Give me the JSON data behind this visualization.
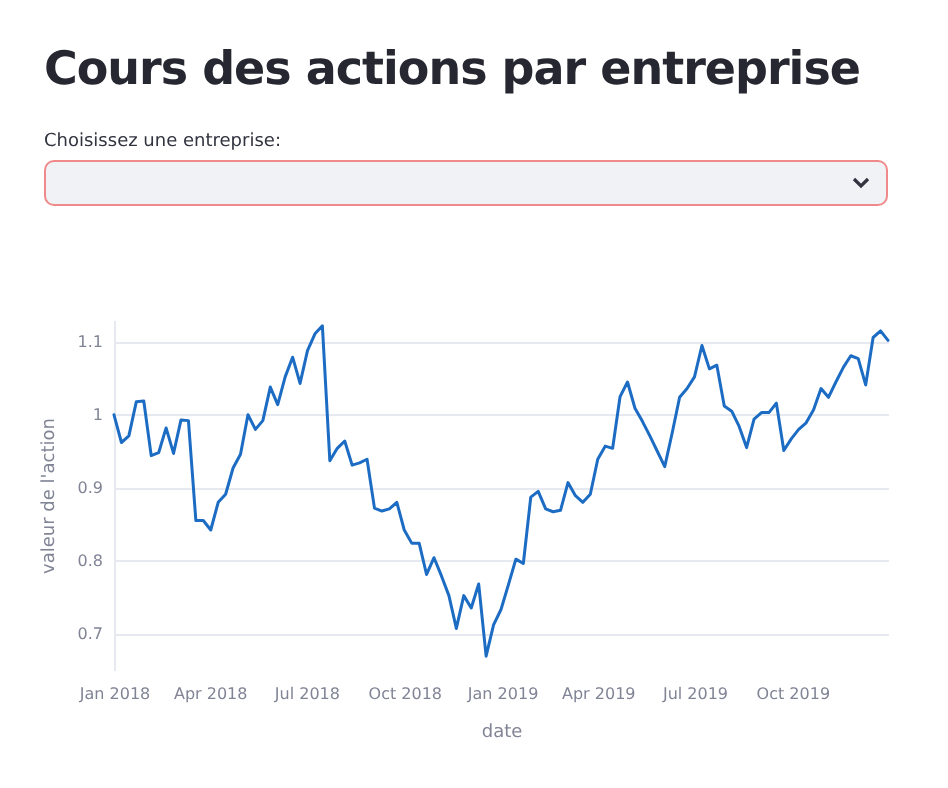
{
  "chart_data": {
    "type": "line",
    "title": "Cours des actions par entreprise",
    "annotations": [
      "Choisissez une entreprise:"
    ],
    "xlabel": "date",
    "ylabel": "valeur de l'action",
    "x": [
      "2018-01-01",
      "2018-01-08",
      "2018-01-15",
      "2018-01-22",
      "2018-01-29",
      "2018-02-05",
      "2018-02-12",
      "2018-02-19",
      "2018-02-26",
      "2018-03-05",
      "2018-03-12",
      "2018-03-19",
      "2018-03-26",
      "2018-04-02",
      "2018-04-09",
      "2018-04-16",
      "2018-04-23",
      "2018-04-30",
      "2018-05-07",
      "2018-05-14",
      "2018-05-21",
      "2018-05-28",
      "2018-06-04",
      "2018-06-11",
      "2018-06-18",
      "2018-06-25",
      "2018-07-02",
      "2018-07-09",
      "2018-07-16",
      "2018-07-23",
      "2018-07-30",
      "2018-08-06",
      "2018-08-13",
      "2018-08-20",
      "2018-08-27",
      "2018-09-03",
      "2018-09-10",
      "2018-09-17",
      "2018-09-24",
      "2018-10-01",
      "2018-10-08",
      "2018-10-15",
      "2018-10-22",
      "2018-10-29",
      "2018-11-05",
      "2018-11-12",
      "2018-11-19",
      "2018-11-26",
      "2018-12-03",
      "2018-12-10",
      "2018-12-17",
      "2018-12-24",
      "2018-12-31",
      "2019-01-07",
      "2019-01-14",
      "2019-01-21",
      "2019-01-28",
      "2019-02-04",
      "2019-02-11",
      "2019-02-18",
      "2019-02-25",
      "2019-03-04",
      "2019-03-11",
      "2019-03-18",
      "2019-03-25",
      "2019-04-01",
      "2019-04-08",
      "2019-04-15",
      "2019-04-22",
      "2019-04-29",
      "2019-05-06",
      "2019-05-13",
      "2019-05-20",
      "2019-05-27",
      "2019-06-03",
      "2019-06-10",
      "2019-06-17",
      "2019-06-24",
      "2019-07-01",
      "2019-07-08",
      "2019-07-15",
      "2019-07-22",
      "2019-07-29",
      "2019-08-05",
      "2019-08-12",
      "2019-08-19",
      "2019-08-26",
      "2019-09-02",
      "2019-09-09",
      "2019-09-16",
      "2019-09-23",
      "2019-09-30",
      "2019-10-07",
      "2019-10-14",
      "2019-10-21",
      "2019-10-28",
      "2019-11-04",
      "2019-11-11",
      "2019-11-18",
      "2019-11-25",
      "2019-12-02",
      "2019-12-09",
      "2019-12-16",
      "2019-12-23",
      "2019-12-30"
    ],
    "series": [
      {
        "color": "#1c6cc4",
        "values": [
          1.0,
          0.962,
          0.971,
          1.018,
          1.019,
          0.944,
          0.948,
          0.982,
          0.947,
          0.993,
          0.992,
          0.855,
          0.855,
          0.842,
          0.88,
          0.891,
          0.927,
          0.946,
          1.0,
          0.98,
          0.992,
          1.038,
          1.014,
          1.052,
          1.079,
          1.043,
          1.088,
          1.111,
          1.122,
          0.937,
          0.954,
          0.964,
          0.931,
          0.934,
          0.939,
          0.872,
          0.868,
          0.871,
          0.88,
          0.842,
          0.824,
          0.824,
          0.781,
          0.804,
          0.779,
          0.752,
          0.707,
          0.752,
          0.735,
          0.768,
          0.669,
          0.712,
          0.733,
          0.767,
          0.802,
          0.796,
          0.887,
          0.895,
          0.871,
          0.867,
          0.869,
          0.907,
          0.889,
          0.88,
          0.891,
          0.939,
          0.957,
          0.954,
          1.025,
          1.045,
          1.009,
          0.991,
          0.971,
          0.95,
          0.929,
          0.975,
          1.024,
          1.036,
          1.052,
          1.095,
          1.063,
          1.068,
          1.012,
          1.005,
          0.984,
          0.955,
          0.994,
          1.003,
          1.003,
          1.016,
          0.951,
          0.967,
          0.98,
          0.989,
          1.007,
          1.036,
          1.024,
          1.045,
          1.065,
          1.081,
          1.077,
          1.041,
          1.106,
          1.115,
          1.102
        ]
      }
    ],
    "xlim": [
      "2018-01-01",
      "2019-12-30"
    ],
    "xticks": [
      {
        "value": "2018-01-01",
        "label": "Jan 2018"
      },
      {
        "value": "2018-04-01",
        "label": "Apr 2018"
      },
      {
        "value": "2018-07-01",
        "label": "Jul 2018"
      },
      {
        "value": "2018-10-01",
        "label": "Oct 2018"
      },
      {
        "value": "2019-01-01",
        "label": "Jan 2019"
      },
      {
        "value": "2019-04-01",
        "label": "Apr 2019"
      },
      {
        "value": "2019-07-01",
        "label": "Jul 2019"
      },
      {
        "value": "2019-10-01",
        "label": "Oct 2019"
      }
    ],
    "ylim": [
      0.65,
      1.13
    ],
    "yticks": [
      0.7,
      0.8,
      0.9,
      1,
      1.1
    ],
    "grid": "y"
  }
}
